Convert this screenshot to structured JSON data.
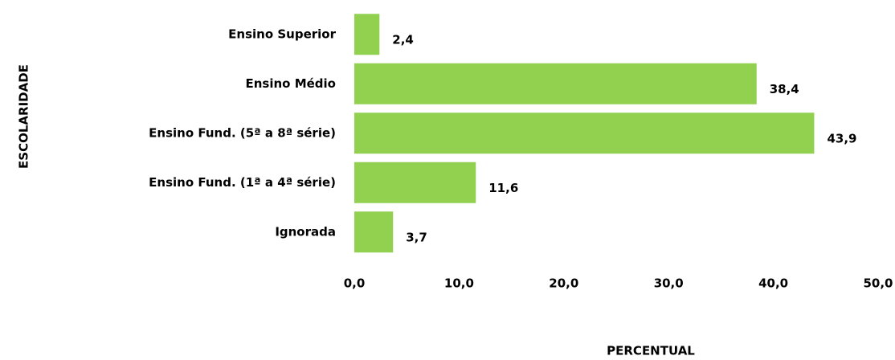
{
  "chart_data": {
    "type": "bar",
    "orientation": "horizontal",
    "categories": [
      "Ensino Superior",
      "Ensino Médio",
      "Ensino Fund. (5ª a 8ª série)",
      "Ensino Fund. (1ª a 4ª série)",
      "Ignorada"
    ],
    "values": [
      2.4,
      38.4,
      43.9,
      11.6,
      3.7
    ],
    "value_labels": [
      "2,4",
      "38,4",
      "43,9",
      "11,6",
      "3,7"
    ],
    "color": "#92d050",
    "xlim": [
      0,
      50
    ],
    "xticks": [
      {
        "value": 0,
        "label": "0,0"
      },
      {
        "value": 10,
        "label": "10,0"
      },
      {
        "value": 20,
        "label": "20,0"
      },
      {
        "value": 30,
        "label": "30,0"
      },
      {
        "value": 40,
        "label": "40,0"
      },
      {
        "value": 50,
        "label": "50,0"
      }
    ],
    "xlabel": "PERCENTUAL",
    "ylabel": "ESCOLARIDADE",
    "grid": false
  }
}
